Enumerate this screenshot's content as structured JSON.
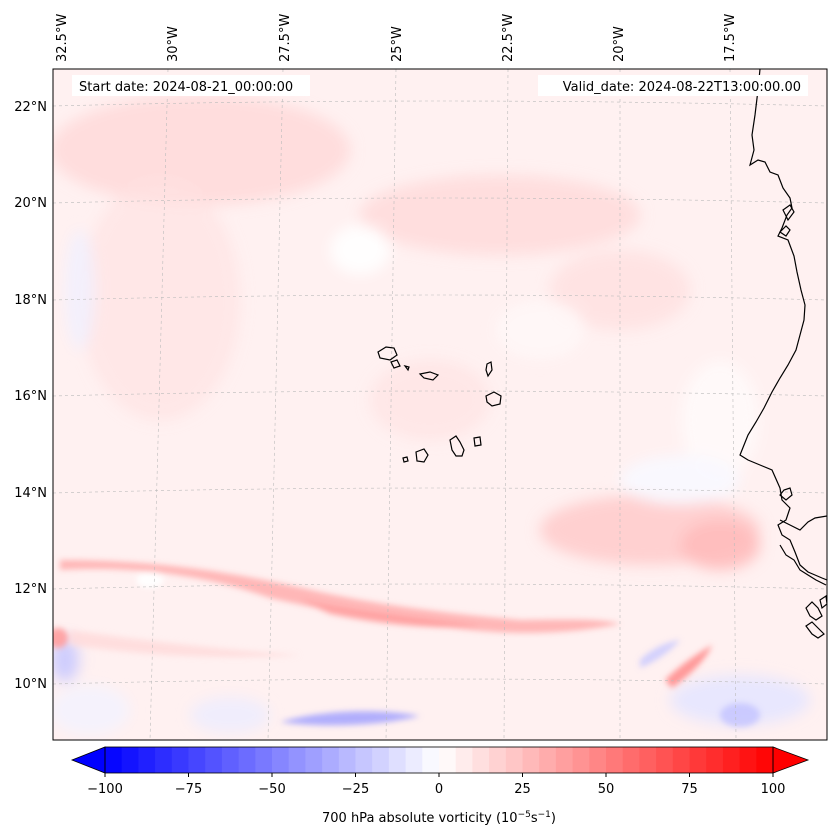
{
  "map": {
    "start_date": "Start date: 2024-08-21_00:00:00",
    "valid_date": "Valid_date: 2024-08-22T13:00:00.00",
    "lon_labels": [
      "32.5°W",
      "30°W",
      "27.5°W",
      "25°W",
      "22.5°W",
      "20°W",
      "17.5°W"
    ],
    "lat_labels": [
      "22°N",
      "20°N",
      "18°N",
      "16°N",
      "14°N",
      "12°N",
      "10°N"
    ]
  },
  "colorbar": {
    "ticks": [
      "−100",
      "−75",
      "−50",
      "−25",
      "0",
      "25",
      "50",
      "75",
      "100"
    ],
    "label": "700 hPa absolute vorticity (10",
    "label_exp1": "−5",
    "label_mid": "s",
    "label_exp2": "−1",
    "label_end": ")",
    "min_color": "#0000ff",
    "mid_color": "#ffffff",
    "max_color": "#ff0000"
  }
}
